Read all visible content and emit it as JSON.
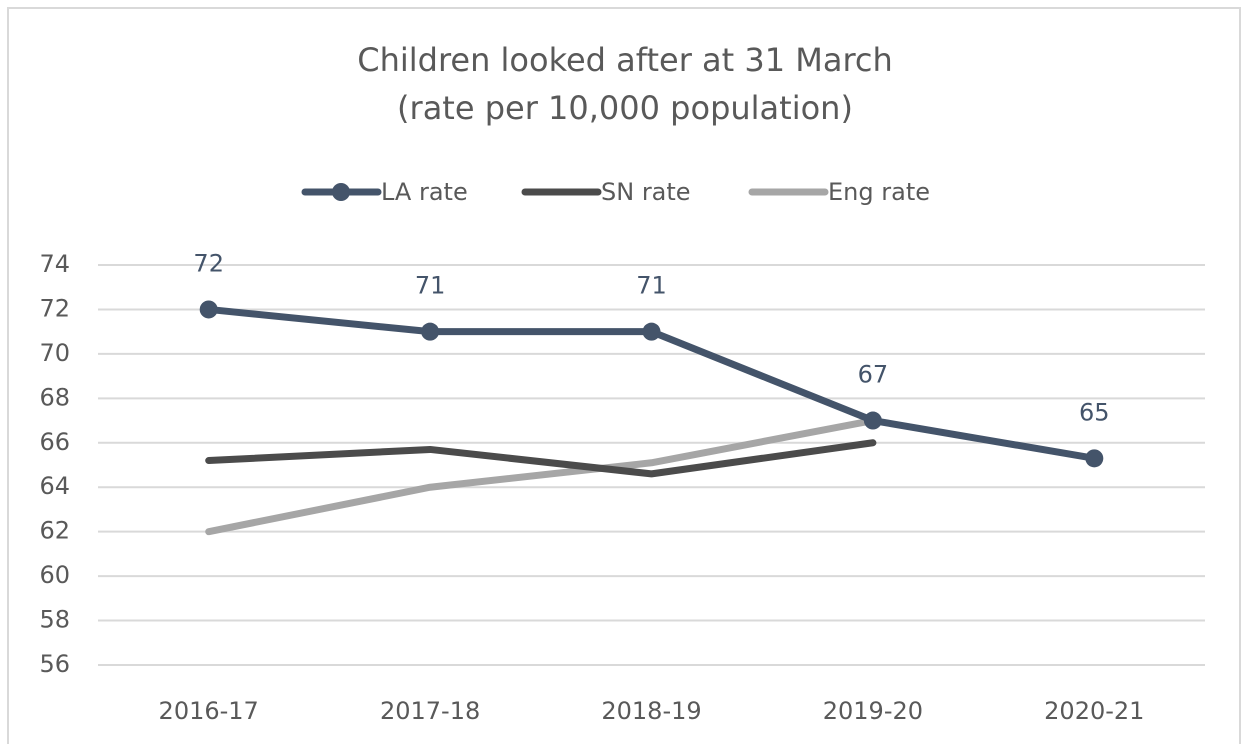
{
  "chart_data": {
    "type": "line",
    "title": "Children looked after at 31 March",
    "subtitle": "(rate per 10,000 population)",
    "categories": [
      "2016-17",
      "2017-18",
      "2018-19",
      "2019-20",
      "2020-21"
    ],
    "series": [
      {
        "name": "LA rate",
        "color": "#44546a",
        "values": [
          72,
          71,
          71,
          67,
          65.3
        ],
        "value_labels": [
          "72",
          "71",
          "71",
          "67",
          "65"
        ],
        "markers": true
      },
      {
        "name": "SN rate",
        "color": "#4b4b4b",
        "values": [
          65.2,
          65.7,
          64.6,
          66.0,
          null
        ]
      },
      {
        "name": "Eng rate",
        "color": "#a6a6a6",
        "values": [
          62.0,
          64.0,
          65.1,
          67.0,
          null
        ]
      }
    ],
    "ylim": [
      56,
      74
    ],
    "yticks": [
      56,
      58,
      60,
      62,
      64,
      66,
      68,
      70,
      72,
      74
    ],
    "grid": true,
    "legend": "top"
  }
}
